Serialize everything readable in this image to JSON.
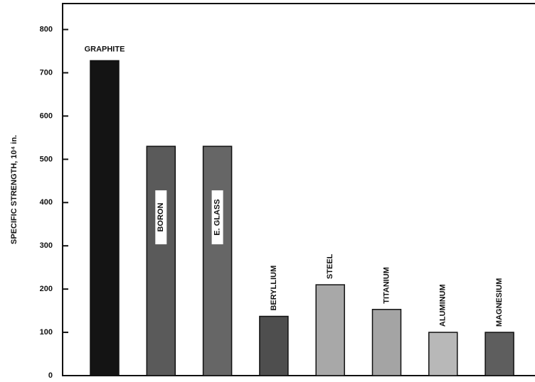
{
  "chart_data": {
    "type": "bar",
    "y_label": "SPECIFIC STRENGTH, 10⁴ in.",
    "categories": [
      "GRAPHITE",
      "BORON",
      "E. GLASS",
      "BERYLLIUM",
      "STEEL",
      "TITANIUM",
      "ALUMINUM",
      "MAGNESIUM"
    ],
    "values": [
      728,
      530,
      530,
      137,
      210,
      153,
      100,
      100
    ],
    "colors": [
      "#141414",
      "#5a5a5a",
      "#666666",
      "#4e4e4e",
      "#a8a8a8",
      "#a4a4a4",
      "#b8b8b8",
      "#5e5e5e"
    ],
    "ylim": [
      0,
      860
    ],
    "yticks": [
      0,
      100,
      200,
      300,
      400,
      500,
      600,
      700,
      800
    ]
  }
}
